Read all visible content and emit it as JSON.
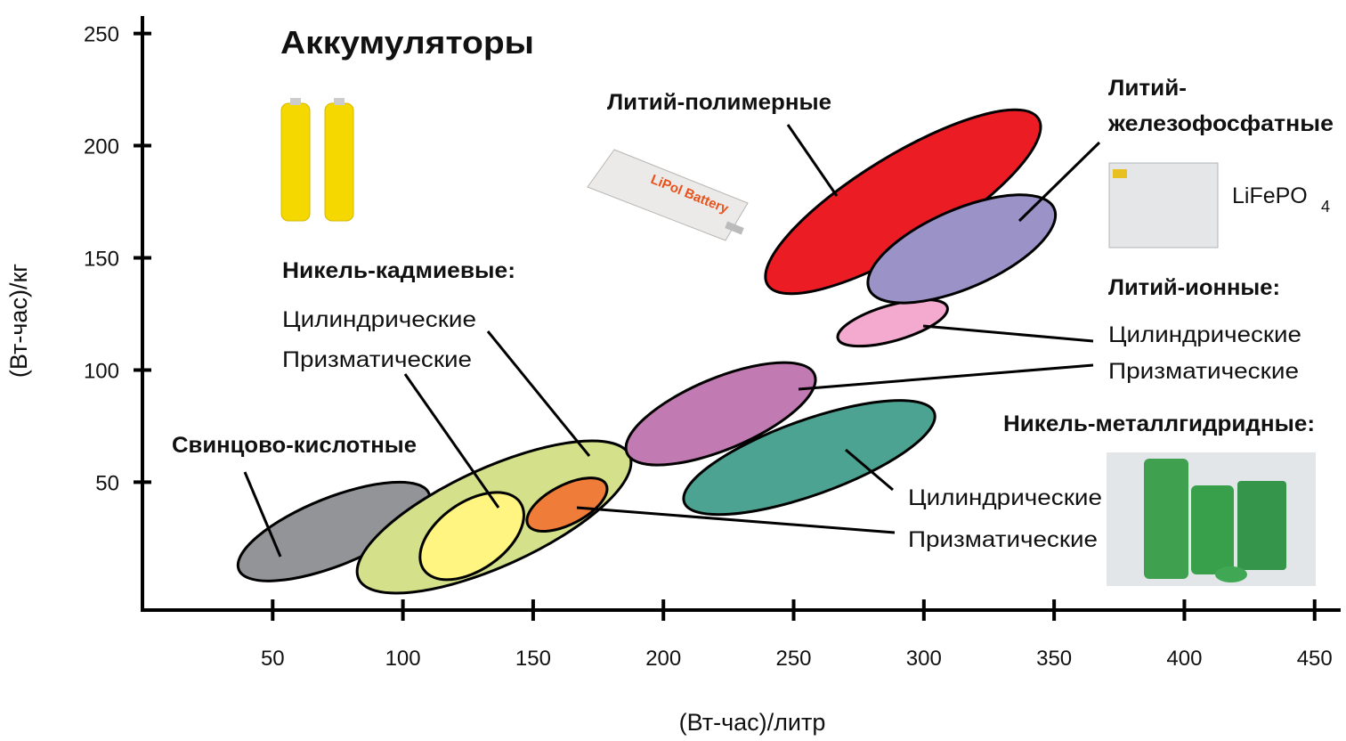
{
  "chart_data": {
    "type": "ellipse",
    "title": "Аккумуляторы",
    "xlabel": "(Вт-час)/литр",
    "ylabel": "(Вт-час)/кг",
    "xlim": [
      0,
      460
    ],
    "xticks": [
      50,
      100,
      150,
      200,
      250,
      300,
      350,
      400,
      450
    ],
    "ylim": [
      -7,
      255
    ],
    "yticks": [
      50,
      100,
      150,
      200,
      250
    ],
    "regions": [
      {
        "color": "#929497",
        "x": [
          37,
          110
        ],
        "y": [
          11,
          45
        ]
      },
      {
        "color": "#d4e08a",
        "x": [
          83,
          187
        ],
        "y": [
          7,
          62
        ]
      },
      {
        "color": "#fff580",
        "x": [
          108,
          145
        ],
        "y": [
          11,
          41
        ]
      },
      {
        "color": "#f07c3a",
        "x": [
          148,
          178
        ],
        "y": [
          31,
          49
        ]
      },
      {
        "color": "#c27bb2",
        "x": [
          186,
          258
        ],
        "y": [
          63,
          98
        ]
      },
      {
        "color": "#4da391",
        "x": [
          208,
          304
        ],
        "y": [
          41,
          81
        ]
      },
      {
        "color": "#f4a9cf",
        "x": [
          267,
          309
        ],
        "y": [
          114,
          128
        ]
      },
      {
        "color": "#ec1c24",
        "x": [
          240,
          344
        ],
        "y": [
          138,
          212
        ]
      },
      {
        "color": "#9b93c8",
        "x": [
          279,
          350
        ],
        "y": [
          136,
          172
        ]
      }
    ],
    "annotations": {
      "lead_acid": "Свинцово-кислотные",
      "nicd": "Никель-кадмиевые:",
      "nicd_cyl": "Цилиндрические",
      "nicd_prism": "Призматические",
      "lipo": "Литий-полимерные",
      "lipo_photo": "LiPol Battery",
      "lfp_1": "Литий-",
      "lfp_2": "железофосфатные",
      "lfp_chem": "LiFePO",
      "lfp_sub": "4",
      "liion": "Литий-ионные:",
      "liion_cyl": "Цилиндрические",
      "liion_prism": "Призматические",
      "nimh": "Никель-металлгидридные:",
      "nimh_cyl": "Цилиндрические",
      "nimh_prism": "Призматические"
    }
  }
}
